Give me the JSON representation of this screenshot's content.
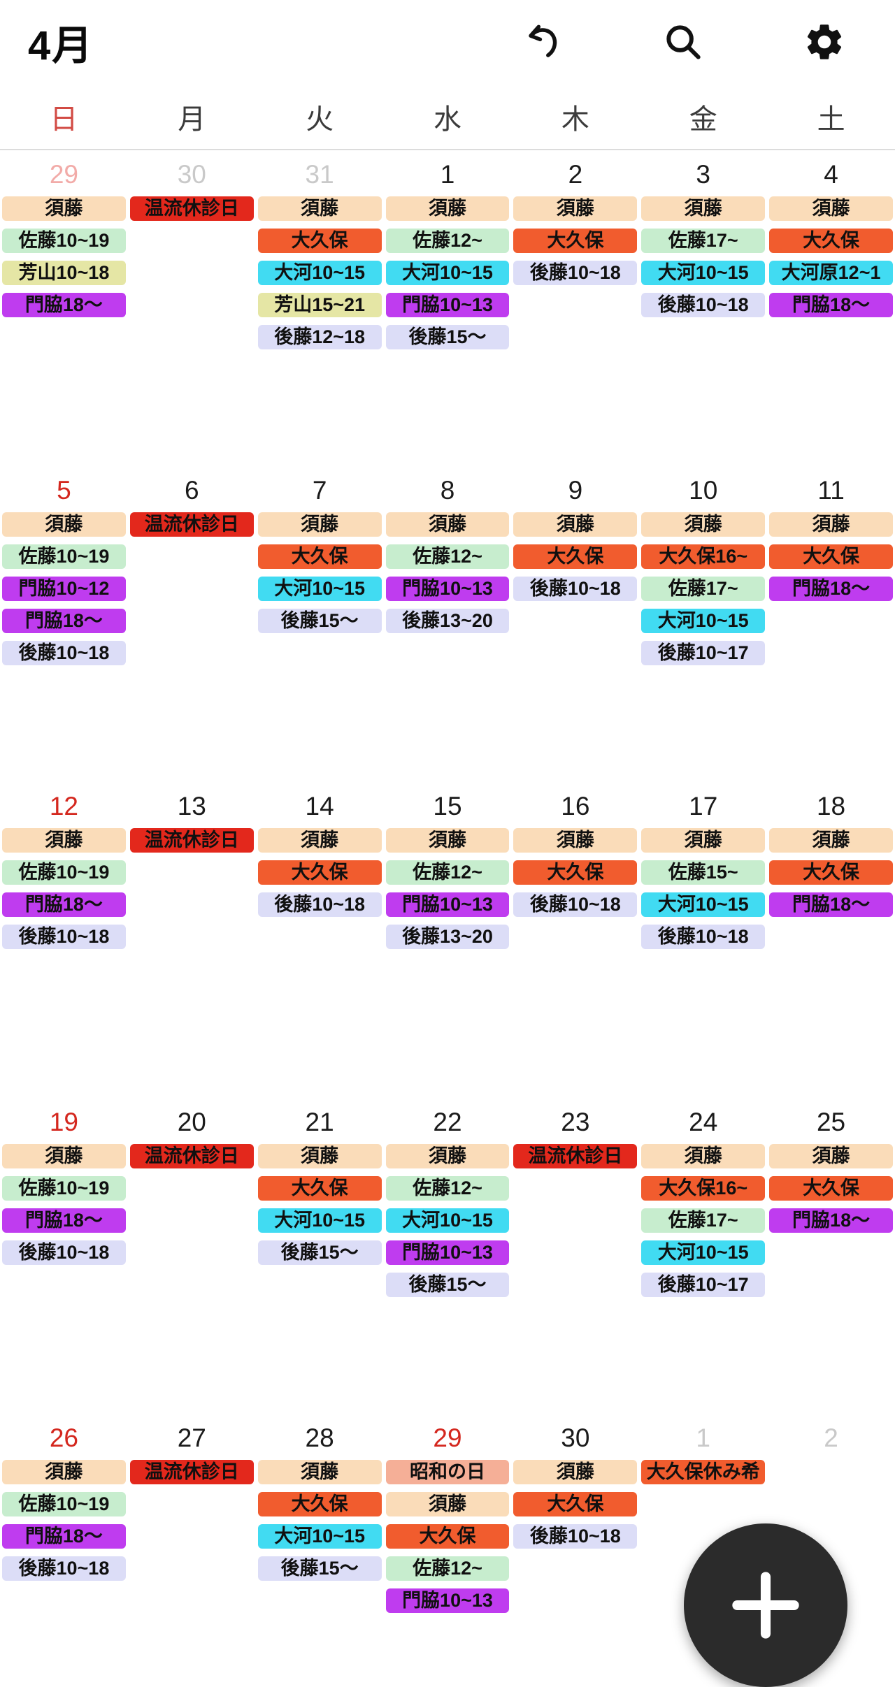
{
  "header": {
    "title": "4月"
  },
  "weekdays": [
    {
      "label": "日",
      "sunday": true
    },
    {
      "label": "月",
      "sunday": false
    },
    {
      "label": "火",
      "sunday": false
    },
    {
      "label": "水",
      "sunday": false
    },
    {
      "label": "木",
      "sunday": false
    },
    {
      "label": "金",
      "sunday": false
    },
    {
      "label": "土",
      "sunday": false
    }
  ],
  "palette": {
    "sudo": "#FADCB9",
    "closed": "#E3281C",
    "sato": "#C7EDCE",
    "yoshiyama": "#E5E6A5",
    "kadowaki": "#BF3CEF",
    "okubo": "#F15C2E",
    "taiga": "#41DBF2",
    "goto": "#DCDDF7",
    "showa": "#F5AF97"
  },
  "date_colors": {
    "normal": "#1b1b1b",
    "sunday": "#D4271E",
    "muted": "#C9C9C9",
    "muted_sunday": "#F2ABA8"
  },
  "ui": {
    "icon_color": "#111111",
    "fab_background": "#2B2B2B",
    "fab_plus": "+"
  },
  "weeks": [
    {
      "days": [
        {
          "date": "29",
          "style": "muted_sunday",
          "events": [
            {
              "text": "須藤",
              "color": "sudo"
            },
            {
              "text": "佐藤10~19",
              "color": "sato"
            },
            {
              "text": "芳山10~18",
              "color": "yoshiyama"
            },
            {
              "text": "門脇18〜",
              "color": "kadowaki"
            }
          ]
        },
        {
          "date": "30",
          "style": "muted",
          "events": [
            {
              "text": "温流休診日",
              "color": "closed"
            }
          ]
        },
        {
          "date": "31",
          "style": "muted",
          "events": [
            {
              "text": "須藤",
              "color": "sudo"
            },
            {
              "text": "大久保",
              "color": "okubo"
            },
            {
              "text": "大河10~15",
              "color": "taiga"
            },
            {
              "text": "芳山15~21",
              "color": "yoshiyama"
            },
            {
              "text": "後藤12~18",
              "color": "goto"
            }
          ]
        },
        {
          "date": "1",
          "style": "normal",
          "events": [
            {
              "text": "須藤",
              "color": "sudo"
            },
            {
              "text": "佐藤12~",
              "color": "sato"
            },
            {
              "text": "大河10~15",
              "color": "taiga"
            },
            {
              "text": "門脇10~13",
              "color": "kadowaki"
            },
            {
              "text": "後藤15〜",
              "color": "goto"
            }
          ]
        },
        {
          "date": "2",
          "style": "normal",
          "events": [
            {
              "text": "須藤",
              "color": "sudo"
            },
            {
              "text": "大久保",
              "color": "okubo"
            },
            {
              "text": "後藤10~18",
              "color": "goto"
            }
          ]
        },
        {
          "date": "3",
          "style": "normal",
          "events": [
            {
              "text": "須藤",
              "color": "sudo"
            },
            {
              "text": "佐藤17~",
              "color": "sato"
            },
            {
              "text": "大河10~15",
              "color": "taiga"
            },
            {
              "text": "後藤10~18",
              "color": "goto"
            }
          ]
        },
        {
          "date": "4",
          "style": "normal",
          "events": [
            {
              "text": "須藤",
              "color": "sudo"
            },
            {
              "text": "大久保",
              "color": "okubo"
            },
            {
              "text": "大河原12~1",
              "color": "taiga"
            },
            {
              "text": "門脇18〜",
              "color": "kadowaki"
            }
          ]
        }
      ]
    },
    {
      "days": [
        {
          "date": "5",
          "style": "sunday",
          "events": [
            {
              "text": "須藤",
              "color": "sudo"
            },
            {
              "text": "佐藤10~19",
              "color": "sato"
            },
            {
              "text": "門脇10~12",
              "color": "kadowaki"
            },
            {
              "text": "門脇18〜",
              "color": "kadowaki"
            },
            {
              "text": "後藤10~18",
              "color": "goto"
            }
          ]
        },
        {
          "date": "6",
          "style": "normal",
          "events": [
            {
              "text": "温流休診日",
              "color": "closed"
            }
          ]
        },
        {
          "date": "7",
          "style": "normal",
          "events": [
            {
              "text": "須藤",
              "color": "sudo"
            },
            {
              "text": "大久保",
              "color": "okubo"
            },
            {
              "text": "大河10~15",
              "color": "taiga"
            },
            {
              "text": "後藤15〜",
              "color": "goto"
            }
          ]
        },
        {
          "date": "8",
          "style": "normal",
          "events": [
            {
              "text": "須藤",
              "color": "sudo"
            },
            {
              "text": "佐藤12~",
              "color": "sato"
            },
            {
              "text": "門脇10~13",
              "color": "kadowaki"
            },
            {
              "text": "後藤13~20",
              "color": "goto"
            }
          ]
        },
        {
          "date": "9",
          "style": "normal",
          "events": [
            {
              "text": "須藤",
              "color": "sudo"
            },
            {
              "text": "大久保",
              "color": "okubo"
            },
            {
              "text": "後藤10~18",
              "color": "goto"
            }
          ]
        },
        {
          "date": "10",
          "style": "normal",
          "events": [
            {
              "text": "須藤",
              "color": "sudo"
            },
            {
              "text": "大久保16~",
              "color": "okubo"
            },
            {
              "text": "佐藤17~",
              "color": "sato"
            },
            {
              "text": "大河10~15",
              "color": "taiga"
            },
            {
              "text": "後藤10~17",
              "color": "goto"
            }
          ]
        },
        {
          "date": "11",
          "style": "normal",
          "events": [
            {
              "text": "須藤",
              "color": "sudo"
            },
            {
              "text": "大久保",
              "color": "okubo"
            },
            {
              "text": "門脇18〜",
              "color": "kadowaki"
            }
          ]
        }
      ]
    },
    {
      "days": [
        {
          "date": "12",
          "style": "sunday",
          "events": [
            {
              "text": "須藤",
              "color": "sudo"
            },
            {
              "text": "佐藤10~19",
              "color": "sato"
            },
            {
              "text": "門脇18〜",
              "color": "kadowaki"
            },
            {
              "text": "後藤10~18",
              "color": "goto"
            }
          ]
        },
        {
          "date": "13",
          "style": "normal",
          "events": [
            {
              "text": "温流休診日",
              "color": "closed"
            }
          ]
        },
        {
          "date": "14",
          "style": "normal",
          "events": [
            {
              "text": "須藤",
              "color": "sudo"
            },
            {
              "text": "大久保",
              "color": "okubo"
            },
            {
              "text": "後藤10~18",
              "color": "goto"
            }
          ]
        },
        {
          "date": "15",
          "style": "normal",
          "events": [
            {
              "text": "須藤",
              "color": "sudo"
            },
            {
              "text": "佐藤12~",
              "color": "sato"
            },
            {
              "text": "門脇10~13",
              "color": "kadowaki"
            },
            {
              "text": "後藤13~20",
              "color": "goto"
            }
          ]
        },
        {
          "date": "16",
          "style": "normal",
          "events": [
            {
              "text": "須藤",
              "color": "sudo"
            },
            {
              "text": "大久保",
              "color": "okubo"
            },
            {
              "text": "後藤10~18",
              "color": "goto"
            }
          ]
        },
        {
          "date": "17",
          "style": "normal",
          "events": [
            {
              "text": "須藤",
              "color": "sudo"
            },
            {
              "text": "佐藤15~",
              "color": "sato"
            },
            {
              "text": "大河10~15",
              "color": "taiga"
            },
            {
              "text": "後藤10~18",
              "color": "goto"
            }
          ]
        },
        {
          "date": "18",
          "style": "normal",
          "events": [
            {
              "text": "須藤",
              "color": "sudo"
            },
            {
              "text": "大久保",
              "color": "okubo"
            },
            {
              "text": "門脇18〜",
              "color": "kadowaki"
            }
          ]
        }
      ]
    },
    {
      "days": [
        {
          "date": "19",
          "style": "sunday",
          "events": [
            {
              "text": "須藤",
              "color": "sudo"
            },
            {
              "text": "佐藤10~19",
              "color": "sato"
            },
            {
              "text": "門脇18〜",
              "color": "kadowaki"
            },
            {
              "text": "後藤10~18",
              "color": "goto"
            }
          ]
        },
        {
          "date": "20",
          "style": "normal",
          "events": [
            {
              "text": "温流休診日",
              "color": "closed"
            }
          ]
        },
        {
          "date": "21",
          "style": "normal",
          "events": [
            {
              "text": "須藤",
              "color": "sudo"
            },
            {
              "text": "大久保",
              "color": "okubo"
            },
            {
              "text": "大河10~15",
              "color": "taiga"
            },
            {
              "text": "後藤15〜",
              "color": "goto"
            }
          ]
        },
        {
          "date": "22",
          "style": "normal",
          "events": [
            {
              "text": "須藤",
              "color": "sudo"
            },
            {
              "text": "佐藤12~",
              "color": "sato"
            },
            {
              "text": "大河10~15",
              "color": "taiga"
            },
            {
              "text": "門脇10~13",
              "color": "kadowaki"
            },
            {
              "text": "後藤15〜",
              "color": "goto"
            }
          ]
        },
        {
          "date": "23",
          "style": "normal",
          "events": [
            {
              "text": "温流休診日",
              "color": "closed"
            }
          ]
        },
        {
          "date": "24",
          "style": "normal",
          "events": [
            {
              "text": "須藤",
              "color": "sudo"
            },
            {
              "text": "大久保16~",
              "color": "okubo"
            },
            {
              "text": "佐藤17~",
              "color": "sato"
            },
            {
              "text": "大河10~15",
              "color": "taiga"
            },
            {
              "text": "後藤10~17",
              "color": "goto"
            }
          ]
        },
        {
          "date": "25",
          "style": "normal",
          "events": [
            {
              "text": "須藤",
              "color": "sudo"
            },
            {
              "text": "大久保",
              "color": "okubo"
            },
            {
              "text": "門脇18〜",
              "color": "kadowaki"
            }
          ]
        }
      ]
    },
    {
      "days": [
        {
          "date": "26",
          "style": "sunday",
          "events": [
            {
              "text": "須藤",
              "color": "sudo"
            },
            {
              "text": "佐藤10~19",
              "color": "sato"
            },
            {
              "text": "門脇18〜",
              "color": "kadowaki"
            },
            {
              "text": "後藤10~18",
              "color": "goto"
            }
          ]
        },
        {
          "date": "27",
          "style": "normal",
          "events": [
            {
              "text": "温流休診日",
              "color": "closed"
            }
          ]
        },
        {
          "date": "28",
          "style": "normal",
          "events": [
            {
              "text": "須藤",
              "color": "sudo"
            },
            {
              "text": "大久保",
              "color": "okubo"
            },
            {
              "text": "大河10~15",
              "color": "taiga"
            },
            {
              "text": "後藤15〜",
              "color": "goto"
            }
          ]
        },
        {
          "date": "29",
          "style": "sunday",
          "events": [
            {
              "text": "昭和の日",
              "color": "showa"
            },
            {
              "text": "須藤",
              "color": "sudo"
            },
            {
              "text": "大久保",
              "color": "okubo"
            },
            {
              "text": "佐藤12~",
              "color": "sato"
            },
            {
              "text": "門脇10~13",
              "color": "kadowaki"
            }
          ]
        },
        {
          "date": "30",
          "style": "normal",
          "events": [
            {
              "text": "須藤",
              "color": "sudo"
            },
            {
              "text": "大久保",
              "color": "okubo"
            },
            {
              "text": "後藤10~18",
              "color": "goto"
            }
          ]
        },
        {
          "date": "1",
          "style": "muted",
          "events": [
            {
              "text": "大久保休み希",
              "color": "okubo"
            }
          ]
        },
        {
          "date": "2",
          "style": "muted",
          "events": []
        }
      ]
    }
  ]
}
